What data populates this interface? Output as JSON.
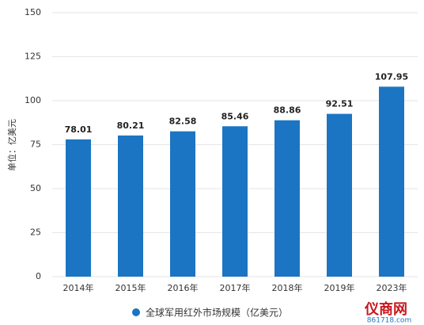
{
  "chart_data": {
    "type": "bar",
    "y_label": "单位：亿美元",
    "categories": [
      "2014年",
      "2015年",
      "2016年",
      "2017年",
      "2018年",
      "2019年",
      "2023年"
    ],
    "series": [
      {
        "name": "全球军用红外市场规模（亿美元）",
        "color": "#1b75c3",
        "values": [
          78.01,
          80.21,
          82.58,
          85.46,
          88.86,
          92.51,
          107.95
        ]
      }
    ],
    "ylim": [
      0,
      150
    ],
    "yticks": [
      0,
      25,
      50,
      75,
      100,
      125,
      150
    ],
    "grid": true,
    "legend": "bottom"
  },
  "logo": {
    "name": "仪商网",
    "url": "861718.com"
  }
}
